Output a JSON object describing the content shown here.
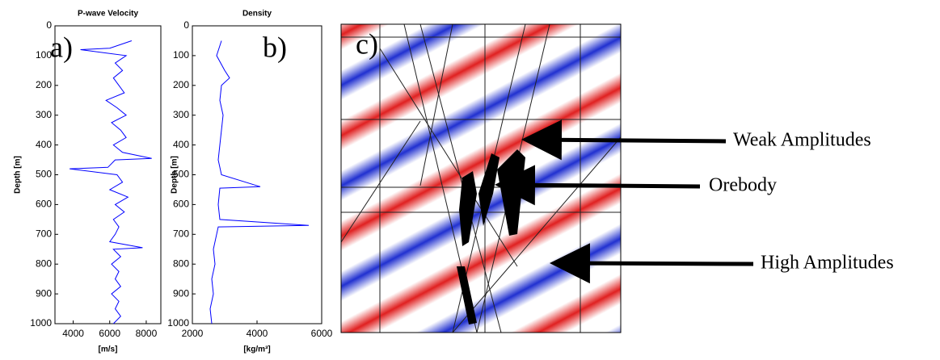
{
  "chart_data": [
    {
      "type": "line",
      "title": "P-wave Velocity",
      "panel_label": "a)",
      "xlabel": "[m/s]",
      "ylabel": "Depth [m]",
      "color": "#0000ff",
      "y": [
        50,
        75,
        80,
        100,
        125,
        150,
        175,
        200,
        225,
        250,
        275,
        300,
        325,
        350,
        375,
        400,
        425,
        445,
        450,
        475,
        480,
        500,
        525,
        550,
        575,
        600,
        625,
        650,
        675,
        700,
        725,
        745,
        750,
        775,
        800,
        825,
        850,
        875,
        900,
        925,
        950,
        975,
        1000
      ],
      "values": [
        7200,
        6000,
        4400,
        6900,
        6300,
        6700,
        6200,
        6500,
        6800,
        5800,
        6400,
        6900,
        6100,
        6600,
        6900,
        6200,
        6700,
        8300,
        6300,
        5900,
        3800,
        6400,
        6700,
        6000,
        7000,
        6300,
        6800,
        6200,
        6500,
        6300,
        6000,
        7800,
        6200,
        6600,
        6100,
        6500,
        6300,
        6600,
        6100,
        6500,
        6300,
        6600,
        6200
      ],
      "xlim": [
        3000,
        8800
      ],
      "xticks": [
        4000,
        6000,
        8000
      ],
      "ylim": [
        1000,
        0
      ],
      "yticks": [
        0,
        100,
        200,
        300,
        400,
        500,
        600,
        700,
        800,
        900,
        1000
      ]
    },
    {
      "type": "line",
      "title": "Density",
      "panel_label": "b)",
      "xlabel": "[kg/m³]",
      "ylabel": "Depth [m]",
      "color": "#0000ff",
      "y": [
        50,
        100,
        150,
        175,
        200,
        250,
        300,
        350,
        400,
        450,
        500,
        540,
        545,
        600,
        650,
        670,
        675,
        700,
        750,
        800,
        850,
        900,
        950,
        1000
      ],
      "values": [
        2900,
        2750,
        3000,
        3150,
        2900,
        2850,
        2950,
        2900,
        2850,
        2800,
        2900,
        4100,
        2850,
        2800,
        2850,
        5600,
        2800,
        2750,
        2650,
        2700,
        2600,
        2650,
        2550,
        2600
      ],
      "xlim": [
        2000,
        6000
      ],
      "xticks": [
        2000,
        4000,
        6000
      ],
      "ylim": [
        1000,
        0
      ],
      "yticks": [
        0,
        100,
        200,
        300,
        400,
        500,
        600,
        700,
        800,
        900,
        1000
      ]
    }
  ],
  "panel_c": {
    "label": "c)",
    "annotations": [
      "Weak Amplitudes",
      "Orebody",
      "High Amplitudes"
    ]
  }
}
